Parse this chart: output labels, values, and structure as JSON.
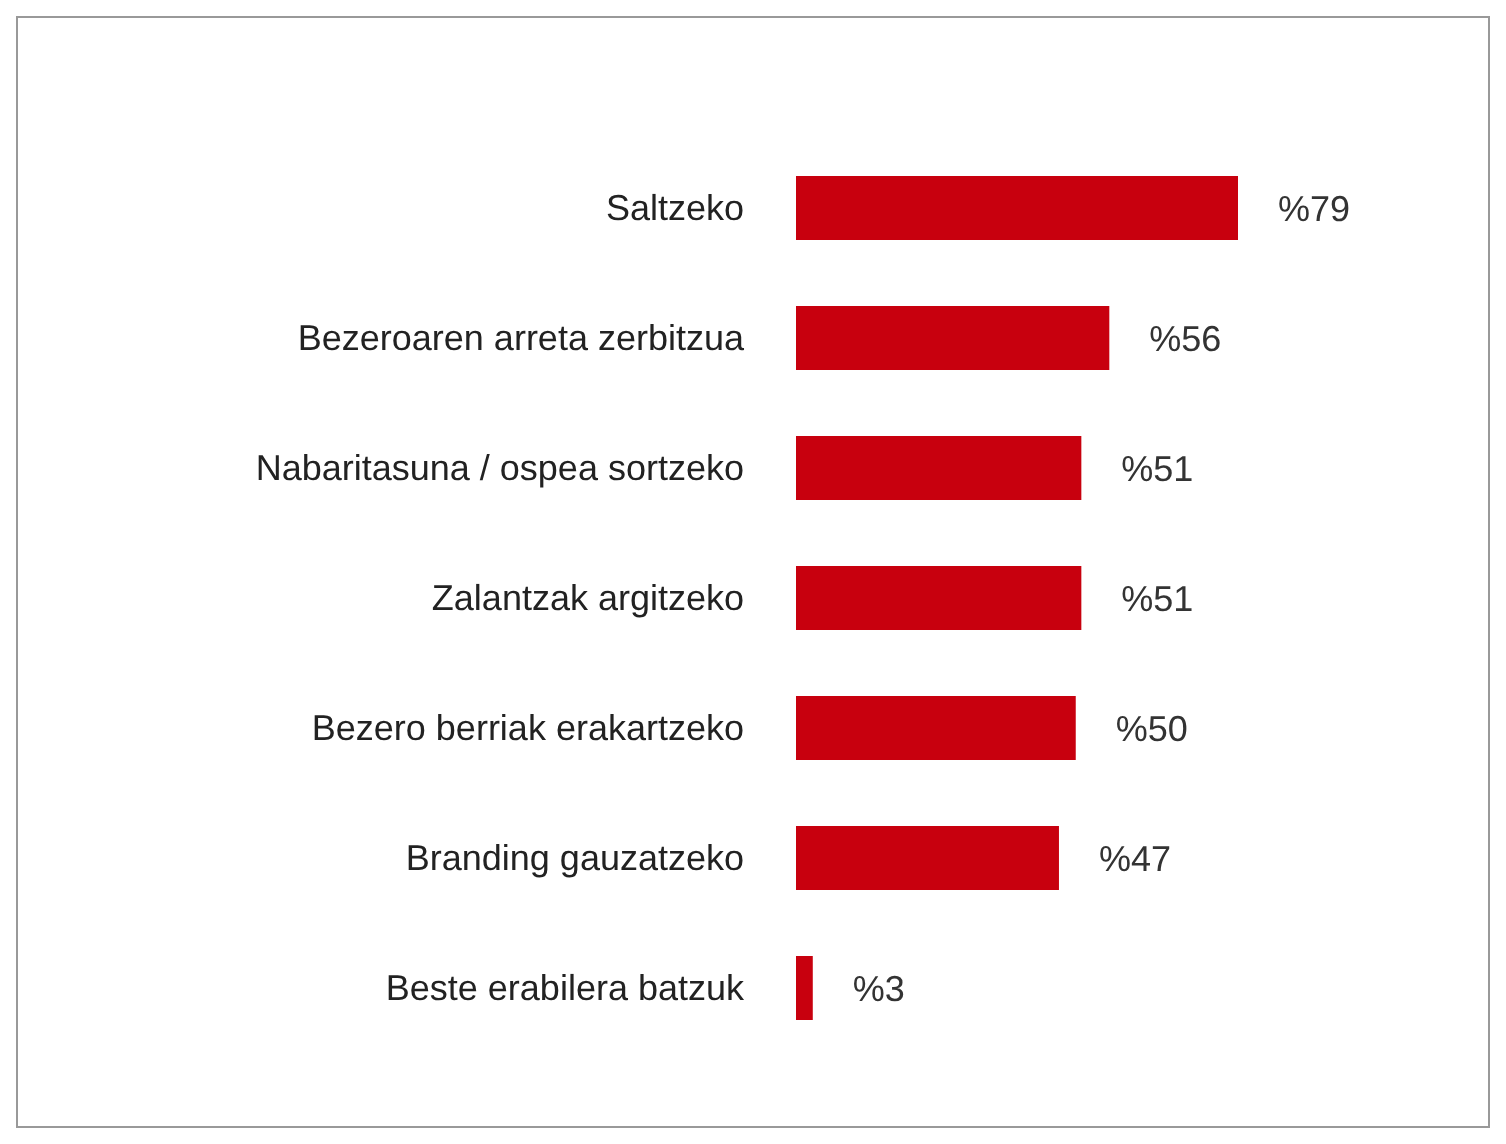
{
  "chart_data": {
    "type": "bar",
    "orientation": "horizontal",
    "categories": [
      "Saltzeko",
      "Bezeroaren arreta zerbitzua",
      "Nabaritasuna / ospea sortzeko",
      "Zalantzak argitzeko",
      "Bezero berriak erakartzeko",
      "Branding gauzatzeko",
      "Beste erabilera batzuk"
    ],
    "values": [
      79,
      56,
      51,
      51,
      50,
      47,
      3
    ],
    "value_labels": [
      "%79",
      "%56",
      "%51",
      "%51",
      "%50",
      "%47",
      "%3"
    ],
    "color": "#c8000e",
    "grid": false,
    "legend": false
  }
}
